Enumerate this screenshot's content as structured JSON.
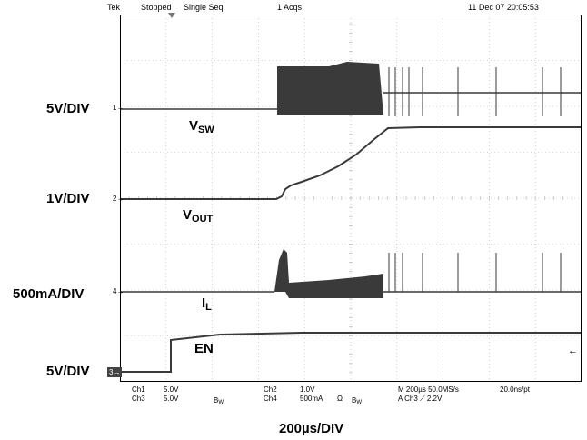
{
  "header": {
    "brand": "Tek",
    "acq_state": "Stopped",
    "acq_mode": "Single Seq",
    "acq_count": "1 Acqs",
    "timestamp": "11 Dec 07 20:05:53"
  },
  "scale_labels": {
    "ch1": "5V/DIV",
    "ch2": "1V/DIV",
    "ch4": "500mA/DIV",
    "ch3": "5V/DIV",
    "time": "200µs/DIV"
  },
  "traces": {
    "vsw": {
      "main": "V",
      "sub": "SW"
    },
    "vout": {
      "main": "V",
      "sub": "OUT"
    },
    "il": {
      "main": "I",
      "sub": "L"
    },
    "en": {
      "main": "EN",
      "sub": ""
    }
  },
  "markers": {
    "ch1": "1",
    "ch2": "2",
    "ch4": "4",
    "ch3": "3"
  },
  "footer": {
    "ch1_label": "Ch1",
    "ch1_scale": "5.0V",
    "ch3_label": "Ch3",
    "ch3_scale": "5.0V",
    "ch3_bw": "B",
    "ch3_bw_sub": "W",
    "ch2_label": "Ch2",
    "ch2_scale": "1.0V",
    "ch4_label": "Ch4",
    "ch4_scale": "500mA",
    "ch4_ohm": "Ω",
    "ch4_bw": "B",
    "ch4_bw_sub": "W",
    "timebase": "M 200µs 50.0MS/s",
    "sample_interval": "20.0ns/pt",
    "trigger": "A  Ch3  ⟋  2.2V"
  },
  "colors": {
    "trace": "#3a3a3a",
    "grid": "#b0b0b0",
    "frame": "#000000"
  }
}
